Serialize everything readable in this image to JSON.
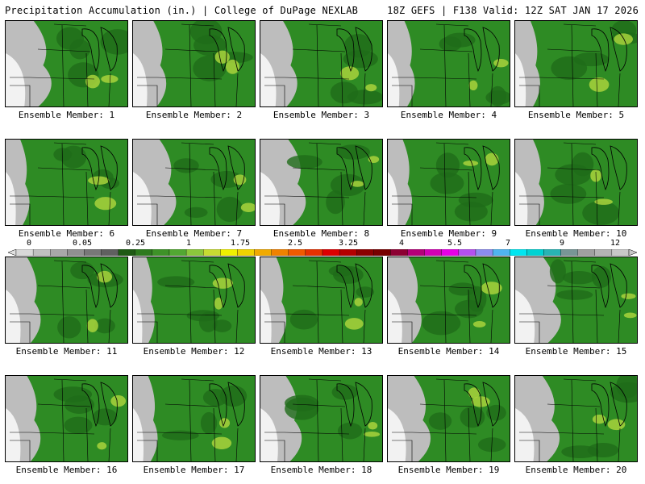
{
  "header": {
    "left_title": "Precipitation Accumulation (in.) | College of DuPage NEXLAB",
    "right_title": "18Z GEFS | F138 Valid: 12Z SAT JAN 17 2026"
  },
  "colorbar": {
    "labels": [
      "0",
      "0.05",
      "0.25",
      "1",
      "1.75",
      "2.5",
      "3.25",
      "4",
      "5.5",
      "7",
      "9",
      "12"
    ],
    "colors": [
      "#d8d8d8",
      "#c0c0c0",
      "#a8a8a8",
      "#909090",
      "#787878",
      "#606060",
      "#1e5a14",
      "#2d7a1e",
      "#3e9228",
      "#52a832",
      "#8cc83c",
      "#c8dc32",
      "#f0f000",
      "#f0d200",
      "#f0aa00",
      "#f08200",
      "#f05a00",
      "#e63200",
      "#dc0000",
      "#b40000",
      "#8c0000",
      "#780000",
      "#8c0032",
      "#b40078",
      "#d200b4",
      "#e600e6",
      "#b450f0",
      "#8c8cf0",
      "#50b4f0",
      "#00e6f0",
      "#00d2d2",
      "#28b4b4",
      "#789696",
      "#a0a0a0",
      "#b4b4b4",
      "#c8c8c8"
    ]
  },
  "members": [
    {
      "label": "Ensemble Member: 1"
    },
    {
      "label": "Ensemble Member: 2"
    },
    {
      "label": "Ensemble Member: 3"
    },
    {
      "label": "Ensemble Member: 4"
    },
    {
      "label": "Ensemble Member: 5"
    },
    {
      "label": "Ensemble Member: 6"
    },
    {
      "label": "Ensemble Member: 7"
    },
    {
      "label": "Ensemble Member: 8"
    },
    {
      "label": "Ensemble Member: 9"
    },
    {
      "label": "Ensemble Member: 10"
    },
    {
      "label": "Ensemble Member: 11"
    },
    {
      "label": "Ensemble Member: 12"
    },
    {
      "label": "Ensemble Member: 13"
    },
    {
      "label": "Ensemble Member: 14"
    },
    {
      "label": "Ensemble Member: 15"
    },
    {
      "label": "Ensemble Member: 16"
    },
    {
      "label": "Ensemble Member: 17"
    },
    {
      "label": "Ensemble Member: 18"
    },
    {
      "label": "Ensemble Member: 19"
    },
    {
      "label": "Ensemble Member: 20"
    }
  ],
  "colors": {
    "light_green": "#2e8b24",
    "dark_green": "#1f6c19",
    "yellow_green": "#a8d23c",
    "gray": "#bdbdbd",
    "white": "#f2f2f2"
  }
}
